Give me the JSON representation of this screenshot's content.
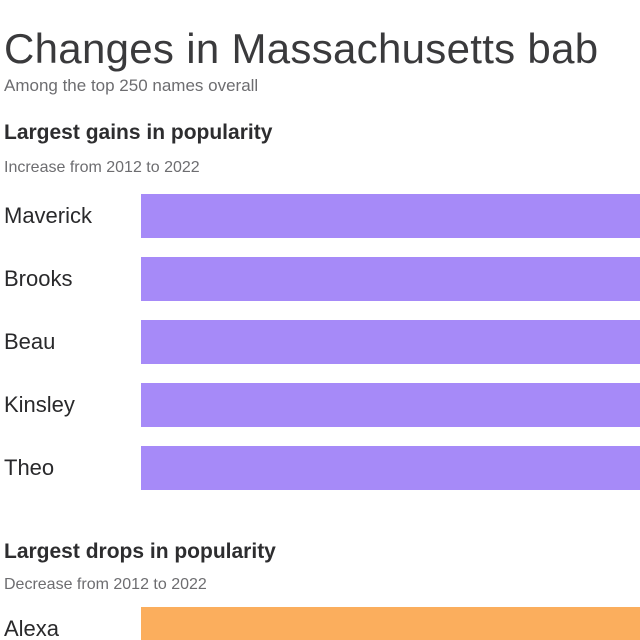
{
  "page": {
    "title": "Changes in Massachusetts bab",
    "title_note": "clipped at right edge of screenshot",
    "subtitle": "Among the top 250 names overall"
  },
  "gains": {
    "heading": "Largest gains in popularity",
    "subheading": "Increase from 2012 to 2022",
    "rows": [
      {
        "label": "Maverick"
      },
      {
        "label": "Brooks"
      },
      {
        "label": "Beau"
      },
      {
        "label": "Kinsley"
      },
      {
        "label": "Theo"
      }
    ]
  },
  "drops": {
    "heading": "Largest drops in popularity",
    "subheading": "Decrease from 2012 to 2022",
    "rows": [
      {
        "label": "Alexa"
      }
    ]
  },
  "colors": {
    "gain_bar": "#a68af8",
    "drop_bar": "#fbae5d",
    "title_text": "#3a3a3c",
    "heading_text": "#2d2d2f",
    "muted_text": "#6d6d70",
    "label_text": "#29292b",
    "background": "#ffffff"
  },
  "chart_data": [
    {
      "type": "bar",
      "orientation": "horizontal",
      "title": "Largest gains in popularity",
      "subtitle": "Increase from 2012 to 2022",
      "categories": [
        "Maverick",
        "Brooks",
        "Beau",
        "Kinsley",
        "Theo"
      ],
      "bar_color": "#a68af8",
      "note": "Bars are clipped at the right edge of the screenshot; numeric values and axis are not visible"
    },
    {
      "type": "bar",
      "orientation": "horizontal",
      "title": "Largest drops in popularity",
      "subtitle": "Decrease from 2012 to 2022",
      "categories": [
        "Alexa"
      ],
      "bar_color": "#fbae5d",
      "note": "Chart cropped at bottom of screenshot; only the first bar is partially visible and clipped at the right edge"
    }
  ]
}
